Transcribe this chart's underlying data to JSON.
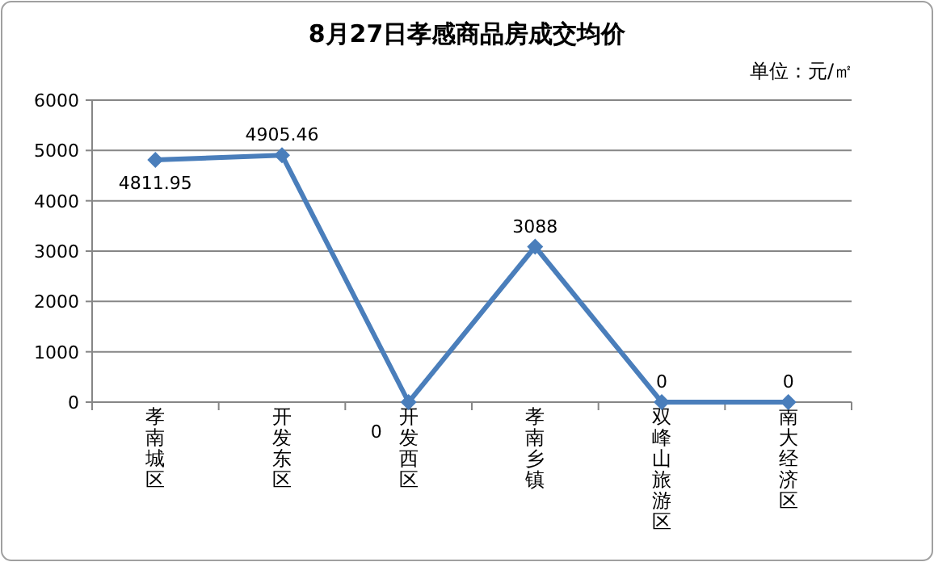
{
  "chart_data": {
    "type": "line",
    "title": "8月27日孝感商品房成交均价",
    "subtitle": "单位：元/㎡",
    "categories": [
      "孝南城区",
      "开发东区",
      "开发西区",
      "孝南乡镇",
      "双峰山旅游区",
      "南大经济区"
    ],
    "series": [
      {
        "color": "#4a7ebb",
        "values": [
          4811.95,
          4905.46,
          0,
          3088,
          0,
          0
        ]
      }
    ],
    "ylim": [
      0,
      6000
    ],
    "yticks": [
      0,
      1000,
      2000,
      3000,
      4000,
      5000,
      6000
    ],
    "grid": "y",
    "marker": "diamond",
    "data_labels": true
  }
}
